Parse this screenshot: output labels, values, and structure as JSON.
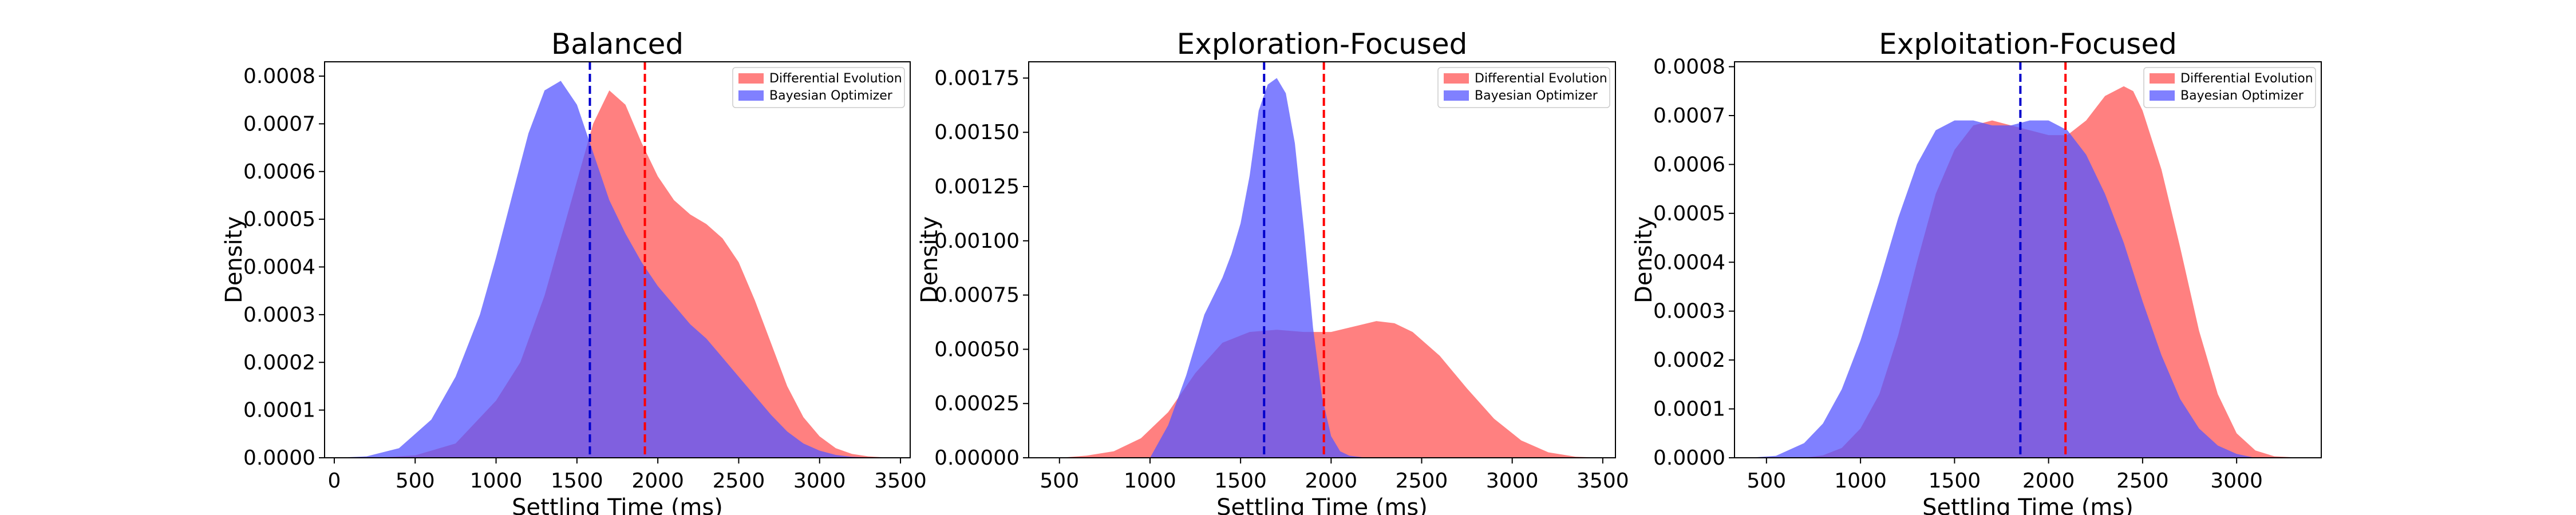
{
  "colors": {
    "de": "#ff5555",
    "bo": "#5555ff",
    "de_mean": "#ff0000",
    "bo_mean": "#0000cc",
    "overlap_note": "overlap renders purple via alpha blending"
  },
  "chart_data": [
    {
      "type": "area",
      "title": "Balanced",
      "xlabel": "Settling Time (ms)",
      "ylabel": "Density",
      "xlim": [
        -60,
        3560
      ],
      "ylim": [
        0,
        0.00083
      ],
      "xticks": [
        0,
        500,
        1000,
        1500,
        2000,
        2500,
        3000,
        3500
      ],
      "xtick_labels": [
        "0",
        "500",
        "1000",
        "1500",
        "2000",
        "2500",
        "3000",
        "3500"
      ],
      "yticks": [
        0,
        0.0001,
        0.0002,
        0.0003,
        0.0004,
        0.0005,
        0.0006,
        0.0007,
        0.0008
      ],
      "ytick_labels": [
        "0.0000",
        "0.0001",
        "0.0002",
        "0.0003",
        "0.0004",
        "0.0005",
        "0.0006",
        "0.0007",
        "0.0008"
      ],
      "legend_position": "top-right",
      "series": [
        {
          "name": "Differential Evolution",
          "color_key": "de",
          "mean": 1920,
          "x": [
            0,
            250,
            500,
            750,
            1000,
            1150,
            1300,
            1450,
            1600,
            1700,
            1800,
            1900,
            2000,
            2100,
            2200,
            2300,
            2400,
            2500,
            2600,
            2700,
            2800,
            2900,
            3000,
            3100,
            3200,
            3300,
            3400,
            3500
          ],
          "y": [
            0,
            0,
            5e-06,
            3e-05,
            0.00012,
            0.0002,
            0.00034,
            0.00052,
            0.0007,
            0.00077,
            0.00074,
            0.00066,
            0.00059,
            0.00054,
            0.00051,
            0.00049,
            0.00046,
            0.00041,
            0.00033,
            0.00024,
            0.00015,
            8.5e-05,
            4.5e-05,
            2e-05,
            8e-06,
            3e-06,
            1e-06,
            0
          ]
        },
        {
          "name": "Bayesian Optimizer",
          "color_key": "bo",
          "mean": 1580,
          "x": [
            0,
            200,
            400,
            600,
            750,
            900,
            1000,
            1100,
            1200,
            1300,
            1400,
            1500,
            1600,
            1700,
            1800,
            1900,
            2000,
            2100,
            2200,
            2300,
            2400,
            2500,
            2600,
            2700,
            2800,
            2900,
            3000,
            3100,
            3200,
            3300,
            3400
          ],
          "y": [
            0,
            3e-06,
            2e-05,
            8e-05,
            0.00017,
            0.0003,
            0.00042,
            0.00055,
            0.00068,
            0.00077,
            0.00079,
            0.00074,
            0.00064,
            0.00054,
            0.00047,
            0.00041,
            0.00036,
            0.00032,
            0.00028,
            0.00025,
            0.00021,
            0.00017,
            0.00013,
            9e-05,
            5.5e-05,
            3e-05,
            1.5e-05,
            6e-06,
            2e-06,
            1e-06,
            0
          ]
        }
      ]
    },
    {
      "type": "area",
      "title": "Exploration-Focused",
      "xlabel": "Settling Time (ms)",
      "ylabel": "Density",
      "xlim": [
        330,
        3570
      ],
      "ylim": [
        0,
        0.001825
      ],
      "xticks": [
        500,
        1000,
        1500,
        2000,
        2500,
        3000,
        3500
      ],
      "xtick_labels": [
        "500",
        "1000",
        "1500",
        "2000",
        "2500",
        "3000",
        "3500"
      ],
      "yticks": [
        0,
        0.00025,
        0.0005,
        0.00075,
        0.001,
        0.00125,
        0.0015,
        0.00175
      ],
      "ytick_labels": [
        "0.00000",
        "0.00025",
        "0.00050",
        "0.00075",
        "0.00100",
        "0.00125",
        "0.00150",
        "0.00175"
      ],
      "legend_position": "top-right",
      "series": [
        {
          "name": "Differential Evolution",
          "color_key": "de",
          "mean": 1960,
          "x": [
            500,
            650,
            800,
            950,
            1100,
            1250,
            1400,
            1550,
            1700,
            1850,
            2000,
            2150,
            2250,
            2350,
            2450,
            2600,
            2750,
            2900,
            3050,
            3200,
            3350,
            3500
          ],
          "y": [
            0,
            1e-05,
            3e-05,
            9e-05,
            0.00021,
            0.00039,
            0.00053,
            0.00058,
            0.00059,
            0.00058,
            0.00058,
            0.00061,
            0.00063,
            0.00062,
            0.00058,
            0.00047,
            0.00032,
            0.00018,
            8e-05,
            2.5e-05,
            5e-06,
            0
          ]
        },
        {
          "name": "Bayesian Optimizer",
          "color_key": "bo",
          "mean": 1630,
          "x": [
            1000,
            1100,
            1200,
            1300,
            1400,
            1450,
            1500,
            1550,
            1600,
            1650,
            1700,
            1750,
            1800,
            1850,
            1900,
            1950,
            2000,
            2050,
            2100,
            2200
          ],
          "y": [
            0,
            0.00015,
            0.00038,
            0.00066,
            0.00083,
            0.00094,
            0.00108,
            0.0013,
            0.0016,
            0.00172,
            0.00175,
            0.00168,
            0.00145,
            0.00105,
            0.0006,
            0.00028,
            0.0001,
            3e-05,
            1e-05,
            0
          ]
        }
      ]
    },
    {
      "type": "area",
      "title": "Exploitation-Focused",
      "xlabel": "Settling Time (ms)",
      "ylabel": "Density",
      "xlim": [
        330,
        3450
      ],
      "ylim": [
        0,
        0.00081
      ],
      "xticks": [
        500,
        1000,
        1500,
        2000,
        2500,
        3000
      ],
      "xtick_labels": [
        "500",
        "1000",
        "1500",
        "2000",
        "2500",
        "3000"
      ],
      "yticks": [
        0,
        0.0001,
        0.0002,
        0.0003,
        0.0004,
        0.0005,
        0.0006,
        0.0007,
        0.0008
      ],
      "ytick_labels": [
        "0.0000",
        "0.0001",
        "0.0002",
        "0.0003",
        "0.0004",
        "0.0005",
        "0.0006",
        "0.0007",
        "0.0008"
      ],
      "legend_position": "top-right",
      "series": [
        {
          "name": "Differential Evolution",
          "color_key": "de",
          "mean": 2090,
          "x": [
            700,
            800,
            900,
            1000,
            1100,
            1200,
            1300,
            1400,
            1500,
            1600,
            1700,
            1800,
            1900,
            2000,
            2100,
            2200,
            2300,
            2400,
            2450,
            2500,
            2600,
            2700,
            2800,
            2900,
            3000,
            3100,
            3200,
            3350
          ],
          "y": [
            0,
            5e-06,
            2e-05,
            6e-05,
            0.00013,
            0.00025,
            0.0004,
            0.00054,
            0.00063,
            0.00068,
            0.00069,
            0.00068,
            0.00067,
            0.00066,
            0.00066,
            0.00069,
            0.00074,
            0.00076,
            0.00075,
            0.00071,
            0.00059,
            0.00043,
            0.00026,
            0.00013,
            5e-05,
            1.5e-05,
            3e-06,
            0
          ]
        },
        {
          "name": "Bayesian Optimizer",
          "color_key": "bo",
          "mean": 1850,
          "x": [
            400,
            550,
            700,
            800,
            900,
            1000,
            1100,
            1200,
            1300,
            1400,
            1500,
            1600,
            1700,
            1800,
            1900,
            2000,
            2100,
            2200,
            2300,
            2400,
            2500,
            2600,
            2700,
            2800,
            2900,
            3000,
            3100
          ],
          "y": [
            0,
            4e-06,
            3e-05,
            7e-05,
            0.00014,
            0.00024,
            0.00036,
            0.00049,
            0.0006,
            0.00067,
            0.00069,
            0.00069,
            0.00068,
            0.00068,
            0.00069,
            0.00069,
            0.00067,
            0.00062,
            0.00054,
            0.00044,
            0.00032,
            0.00021,
            0.00012,
            6e-05,
            2.5e-05,
            8e-06,
            0
          ]
        }
      ]
    }
  ]
}
